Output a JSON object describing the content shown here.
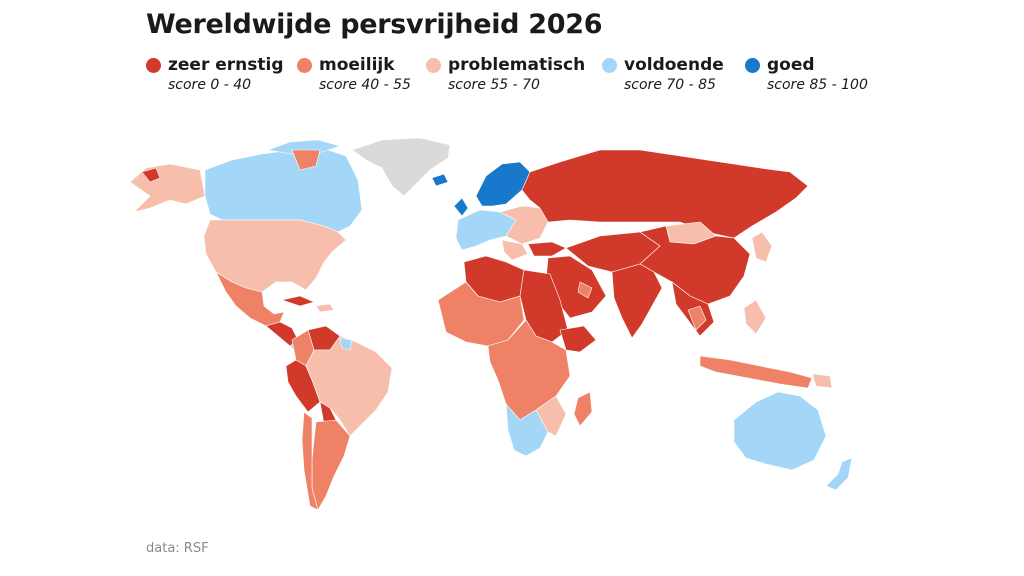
{
  "title": "Wereldwijde persvrijheid 2026",
  "legend": [
    {
      "label": "zeer ernstig",
      "range": "score 0 - 40",
      "color": "#d13a2a"
    },
    {
      "label": "moeilijk",
      "range": "score 40 - 55",
      "color": "#ef8266"
    },
    {
      "label": "problematisch",
      "range": "score 55 - 70",
      "color": "#f7beac"
    },
    {
      "label": "voldoende",
      "range": "score 70 - 85",
      "color": "#a3d6f7"
    },
    {
      "label": "goed",
      "range": "score 85 - 100",
      "color": "#1878cc"
    }
  ],
  "no_data_color": "#dadada",
  "source": "data: RSF"
}
